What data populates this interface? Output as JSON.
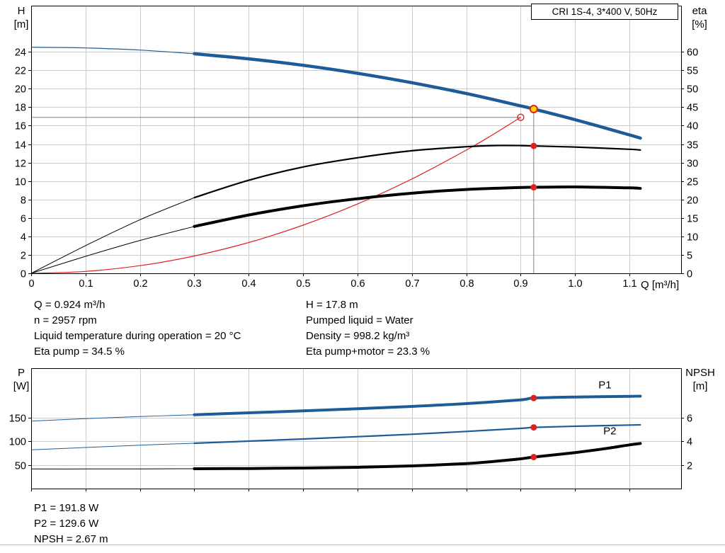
{
  "title_box": {
    "label": "CRI 1S-4, 3*400 V, 50Hz"
  },
  "axis_labels": {
    "top_left_1": "H",
    "top_left_2": "[m]",
    "top_right_1": "eta",
    "top_right_2": "[%]",
    "x": "Q [m³/h]",
    "bottom_left_1": "P",
    "bottom_left_2": "[W]",
    "bottom_right_1": "NPSH",
    "bottom_right_2": "[m]"
  },
  "info_top": {
    "left": [
      "Q = 0.924 m³/h",
      "n = 2957 rpm",
      "Liquid temperature during operation = 20 °C",
      "Eta pump = 34.5 %"
    ],
    "right": [
      "H = 17.8 m",
      "Pumped liquid = Water",
      "Density = 998.2 kg/m³",
      "Eta pump+motor = 23.3 %"
    ]
  },
  "info_bottom": [
    "P1 = 191.8 W",
    "P2 = 129.6 W",
    "NPSH = 2.67 m"
  ],
  "colors": {
    "curve_blue": "#1d5c99",
    "curve_black": "#000000",
    "curve_red": "#e02020",
    "duty_fill": "#ffd700",
    "grid": "#cccccc",
    "guide": "#808080"
  },
  "chart_data": [
    {
      "type": "line",
      "title": "CRI 1S-4, 3*400 V, 50Hz",
      "xlabel": "Q [m³/h]",
      "ylabel_left": "H [m]",
      "ylabel_right": "eta [%]",
      "xlim": [
        0,
        1.195
      ],
      "ylim_left": [
        0,
        29
      ],
      "ylim_right": [
        0,
        72.5
      ],
      "grid": true,
      "x_ticks": [
        0,
        0.1,
        0.2,
        0.3,
        0.4,
        0.5,
        0.6,
        0.7,
        0.8,
        0.9,
        1.0,
        1.1
      ],
      "x_tick_label_text": [
        "0",
        "0.1",
        "0.2",
        "0.3",
        "0.4",
        "0.5",
        "0.6",
        "0.7",
        "0.8",
        "0.9",
        "1.0",
        "1.1"
      ],
      "x_tick_labels": true,
      "y_ticks_left": [
        0,
        2,
        4,
        6,
        8,
        10,
        12,
        14,
        16,
        18,
        20,
        22,
        24
      ],
      "y_ticks_right": [
        0,
        5,
        10,
        15,
        20,
        25,
        30,
        35,
        40,
        45,
        50,
        55,
        60
      ],
      "series": [
        {
          "name": "system-curve",
          "axis": "left",
          "color": "#e02020",
          "width": 1.2,
          "x": [
            0,
            0.1,
            0.2,
            0.3,
            0.4,
            0.5,
            0.6,
            0.7,
            0.8,
            0.85,
            0.9
          ],
          "y": [
            0,
            0.21,
            0.83,
            1.88,
            3.34,
            5.22,
            7.51,
            10.22,
            13.35,
            15.07,
            16.9
          ]
        },
        {
          "name": "eta-pump-motor",
          "axis": "right",
          "color": "#000000",
          "width": 4,
          "thin_width": 1,
          "split": 0.3,
          "x": [
            0,
            0.1,
            0.2,
            0.3,
            0.4,
            0.5,
            0.6,
            0.7,
            0.8,
            0.9,
            0.924,
            1.0,
            1.1,
            1.12
          ],
          "y": [
            0,
            4.6,
            8.9,
            12.7,
            15.8,
            18.3,
            20.2,
            21.7,
            22.7,
            23.25,
            23.3,
            23.4,
            23.15,
            23.0
          ]
        },
        {
          "name": "eta-pump",
          "axis": "right",
          "color": "#000000",
          "width": 2.2,
          "thin_width": 1,
          "split": 0.3,
          "x": [
            0,
            0.1,
            0.2,
            0.3,
            0.4,
            0.5,
            0.6,
            0.7,
            0.8,
            0.85,
            0.9,
            0.924,
            1.0,
            1.1,
            1.12
          ],
          "y": [
            0,
            7.5,
            14.5,
            20.5,
            25.2,
            28.8,
            31.3,
            33.2,
            34.3,
            34.6,
            34.6,
            34.5,
            34.2,
            33.6,
            33.4
          ]
        },
        {
          "name": "head",
          "axis": "left",
          "color": "#1d5c99",
          "width": 4.5,
          "thin_width": 1.2,
          "split": 0.3,
          "x": [
            0,
            0.1,
            0.2,
            0.3,
            0.4,
            0.5,
            0.6,
            0.7,
            0.8,
            0.9,
            0.924,
            1.0,
            1.1,
            1.12
          ],
          "y": [
            24.5,
            24.42,
            24.19,
            23.79,
            23.24,
            22.54,
            21.67,
            20.65,
            19.48,
            18.14,
            17.8,
            16.65,
            15.0,
            14.65
          ]
        }
      ],
      "guides": [
        {
          "type": "vline",
          "x": 0.924,
          "y1": 0,
          "y2": 17.8,
          "axis": "left"
        },
        {
          "type": "hline",
          "y": 16.9,
          "x1": 0,
          "x2": 0.9,
          "axis": "left"
        }
      ],
      "markers": [
        {
          "kind": "open",
          "x": 0.9,
          "y": 16.9,
          "axis": "left",
          "name": "specified-duty-point"
        },
        {
          "kind": "dot",
          "x": 0.924,
          "y": 34.5,
          "axis": "right",
          "name": "eta-pump-point"
        },
        {
          "kind": "dot",
          "x": 0.924,
          "y": 23.3,
          "axis": "right",
          "name": "eta-pump-motor-point"
        },
        {
          "kind": "duty",
          "x": 0.924,
          "y": 17.8,
          "axis": "left",
          "name": "duty-point"
        }
      ],
      "labels": []
    },
    {
      "type": "line",
      "title": "",
      "xlabel": "",
      "ylabel_left": "P [W]",
      "ylabel_right": "NPSH [m]",
      "xlim": [
        0,
        1.195
      ],
      "ylim_left": [
        0,
        255
      ],
      "ylim_right": [
        0,
        10.2
      ],
      "grid": true,
      "x_ticks": [
        0,
        0.1,
        0.2,
        0.3,
        0.4,
        0.5,
        0.6,
        0.7,
        0.8,
        0.9,
        1.0,
        1.1
      ],
      "x_tick_labels": false,
      "y_ticks_left": [
        50,
        100,
        150
      ],
      "y_ticks_right": [
        2,
        4,
        6
      ],
      "series": [
        {
          "name": "npsh",
          "axis": "right",
          "color": "#000000",
          "width": 4,
          "thin_width": 1,
          "split": 0.3,
          "x": [
            0,
            0.1,
            0.2,
            0.3,
            0.4,
            0.5,
            0.6,
            0.7,
            0.8,
            0.85,
            0.9,
            0.924,
            1.0,
            1.05,
            1.1,
            1.12
          ],
          "y": [
            1.66,
            1.66,
            1.67,
            1.68,
            1.7,
            1.74,
            1.8,
            1.92,
            2.12,
            2.3,
            2.52,
            2.67,
            3.05,
            3.35,
            3.7,
            3.82
          ]
        },
        {
          "name": "p2",
          "axis": "left",
          "color": "#1d5c99",
          "width": 2.2,
          "thin_width": 1,
          "split": 0.3,
          "x": [
            0,
            0.1,
            0.2,
            0.3,
            0.4,
            0.5,
            0.6,
            0.7,
            0.8,
            0.9,
            0.924,
            1.0,
            1.1,
            1.12
          ],
          "y": [
            82,
            87,
            92,
            96,
            100.5,
            105,
            110,
            115,
            121,
            127.5,
            129.6,
            132,
            134.5,
            135
          ]
        },
        {
          "name": "p1",
          "axis": "left",
          "color": "#1d5c99",
          "width": 4,
          "thin_width": 1,
          "split": 0.3,
          "x": [
            0,
            0.1,
            0.2,
            0.3,
            0.4,
            0.5,
            0.6,
            0.7,
            0.8,
            0.9,
            0.924,
            1.0,
            1.1,
            1.12
          ],
          "y": [
            143,
            148,
            152.5,
            156.5,
            160.5,
            164.5,
            169,
            174,
            180,
            188,
            191.8,
            194,
            195.5,
            195.7
          ]
        }
      ],
      "guides": [],
      "markers": [
        {
          "kind": "dot",
          "x": 0.924,
          "y": 191.8,
          "axis": "left",
          "name": "p1-point"
        },
        {
          "kind": "dot",
          "x": 0.924,
          "y": 129.6,
          "axis": "left",
          "name": "p2-point"
        },
        {
          "kind": "dot",
          "x": 0.924,
          "y": 2.67,
          "axis": "right",
          "name": "npsh-point"
        }
      ],
      "labels": [
        {
          "text": "P1",
          "x": 1.043,
          "y": 212,
          "axis": "left",
          "color": "#1d5c99",
          "name": "p1-curve-label"
        },
        {
          "text": "P2",
          "x": 1.052,
          "y": 115,
          "axis": "left",
          "color": "#1d5c99",
          "name": "p2-curve-label"
        }
      ]
    }
  ]
}
